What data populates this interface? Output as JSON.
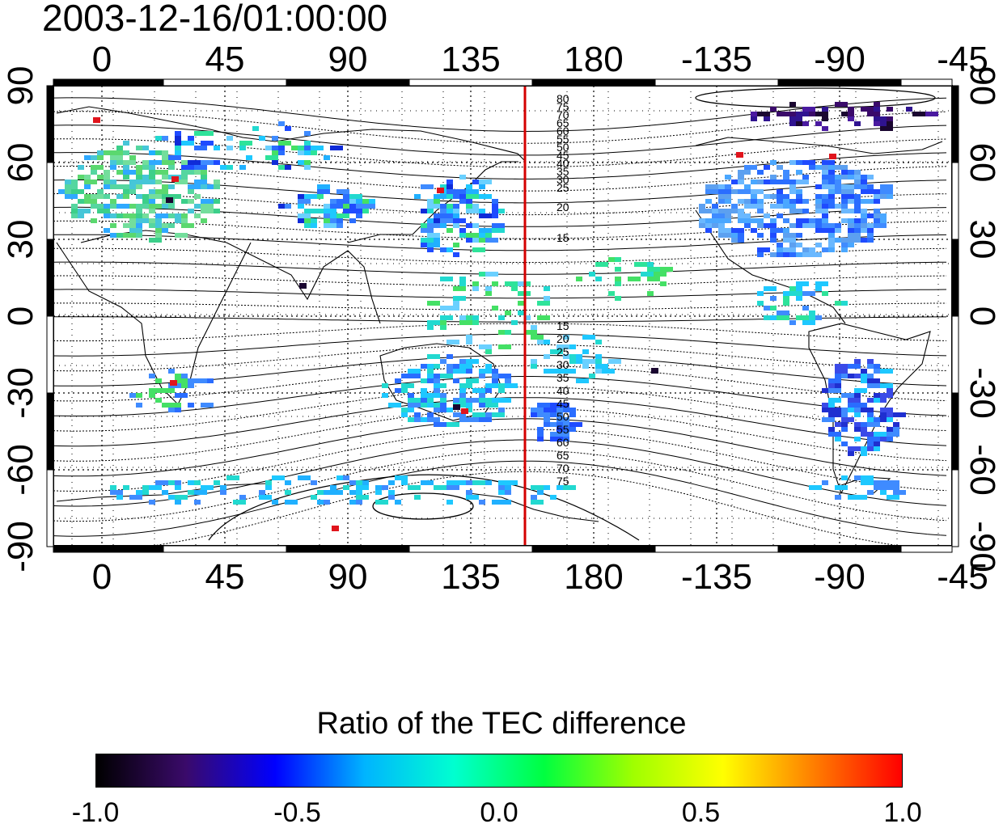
{
  "title": "2003-12-16/01:00:00",
  "map": {
    "top_axis_labels": [
      "0",
      "45",
      "90",
      "135",
      "180",
      "-135",
      "-90",
      "-45"
    ],
    "bottom_axis_labels": [
      "0",
      "45",
      "90",
      "135",
      "180",
      "-135",
      "-90",
      "-45"
    ],
    "left_axis_labels": [
      "90",
      "60",
      "30",
      "0",
      "-30",
      "-60",
      "-90"
    ],
    "right_axis_labels": [
      "90",
      "60",
      "30",
      "0",
      "-30",
      "-60",
      "-90"
    ],
    "marker_line_color": "#d40000",
    "contour_labels_north": [
      "80",
      "75",
      "70",
      "65",
      "60",
      "55",
      "50",
      "45",
      "40",
      "35",
      "30",
      "25",
      "20",
      "15"
    ],
    "contour_labels_south": [
      "15",
      "20",
      "25",
      "30",
      "35",
      "40",
      "45",
      "50",
      "55",
      "60",
      "65",
      "70",
      "75"
    ]
  },
  "colorbar": {
    "title": "Ratio of the TEC difference",
    "tick_labels": [
      "-1.0",
      "-0.5",
      "0.0",
      "0.5",
      "1.0"
    ],
    "colors": [
      "#000000",
      "#3a0a6a",
      "#0000ff",
      "#00b4ff",
      "#00ffd0",
      "#00ff40",
      "#a0ff00",
      "#ffff00",
      "#ff8000",
      "#ff0000"
    ]
  }
}
